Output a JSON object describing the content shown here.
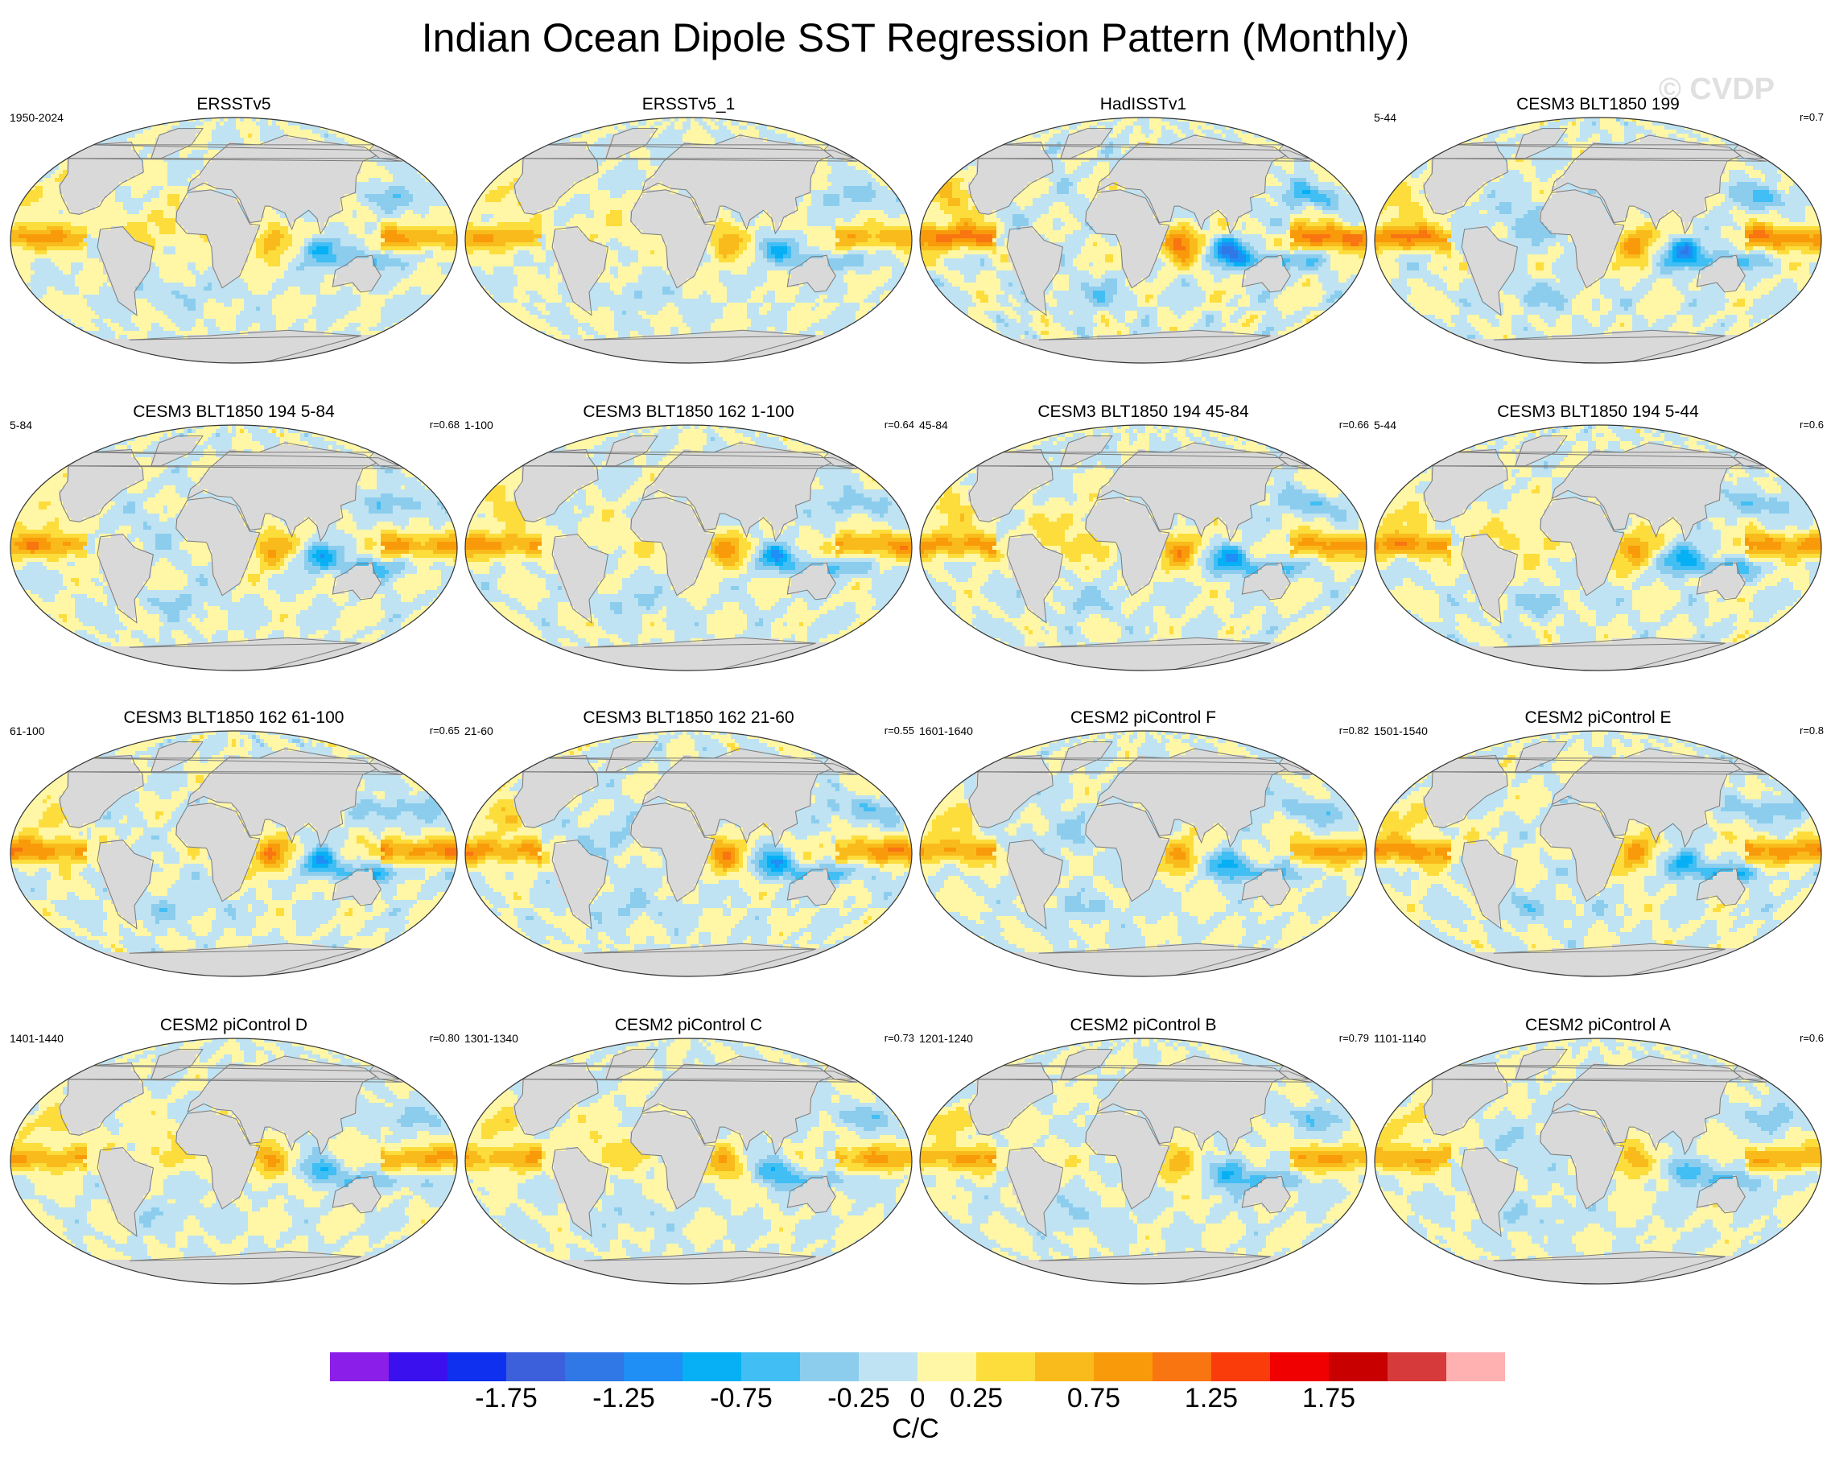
{
  "title": "Indian Ocean Dipole SST Regression Pattern (Monthly)",
  "watermark": "© CVDP",
  "colors": {
    "land": "#d9d9d9",
    "coast": "#7a7a7a",
    "scale": [
      "#8b1ee8",
      "#3a10ee",
      "#1030f0",
      "#3c5fdc",
      "#2f78e6",
      "#1f8ef5",
      "#07b0f5",
      "#41bef3",
      "#8ccdee",
      "#bfe3f2",
      "#fff7a6",
      "#fcdd3c",
      "#f9bb1b",
      "#f99a0a",
      "#f87511",
      "#f93c0a",
      "#f00000",
      "#c80000",
      "#d73a3a",
      "#ffb0b0"
    ]
  },
  "panels": [
    {
      "title": "ERSSTv5",
      "period": "1950-2024",
      "corr": "",
      "variant": 0,
      "amp": 0.9
    },
    {
      "title": "ERSSTv5_1",
      "period": "",
      "corr": "",
      "variant": 1,
      "amp": 0.85
    },
    {
      "title": "HadISSTv1",
      "period": "",
      "corr": "",
      "variant": 2,
      "amp": 1.3
    },
    {
      "title": "CESM3 BLT1850 199",
      "period": "5-44",
      "corr": "r=0.7",
      "variant": 3,
      "amp": 1.15
    },
    {
      "title": "CESM3 BLT1850 194 5-84",
      "period": "5-84",
      "corr": "r=0.68",
      "variant": 4,
      "amp": 1.0
    },
    {
      "title": "CESM3 BLT1850 162 1-100",
      "period": "1-100",
      "corr": "r=0.64",
      "variant": 5,
      "amp": 1.0
    },
    {
      "title": "CESM3 BLT1850 194 45-84",
      "period": "45-84",
      "corr": "r=0.66",
      "variant": 6,
      "amp": 1.0
    },
    {
      "title": "CESM3 BLT1850 194 5-44",
      "period": "5-44",
      "corr": "r=0.6",
      "variant": 7,
      "amp": 1.05
    },
    {
      "title": "CESM3 BLT1850 162 61-100",
      "period": "61-100",
      "corr": "r=0.65",
      "variant": 8,
      "amp": 1.1
    },
    {
      "title": "CESM3 BLT1850 162 21-60",
      "period": "21-60",
      "corr": "r=0.55",
      "variant": 9,
      "amp": 1.05
    },
    {
      "title": "CESM2 piControl F",
      "period": "1601-1640",
      "corr": "r=0.82",
      "variant": 10,
      "amp": 0.95
    },
    {
      "title": "CESM2 piControl E",
      "period": "1501-1540",
      "corr": "r=0.8",
      "variant": 11,
      "amp": 1.1
    },
    {
      "title": "CESM2 piControl D",
      "period": "1401-1440",
      "corr": "r=0.80",
      "variant": 12,
      "amp": 0.9
    },
    {
      "title": "CESM2 piControl C",
      "period": "1301-1340",
      "corr": "r=0.73",
      "variant": 13,
      "amp": 0.85
    },
    {
      "title": "CESM2 piControl B",
      "period": "1201-1240",
      "corr": "r=0.79",
      "variant": 14,
      "amp": 0.9
    },
    {
      "title": "CESM2 piControl A",
      "period": "1101-1140",
      "corr": "r=0.6",
      "variant": 15,
      "amp": 0.9
    }
  ],
  "colorbar": {
    "levels": [
      -2.25,
      -2,
      -1.75,
      -1.5,
      -1.25,
      -1,
      -0.75,
      -0.5,
      -0.25,
      0,
      0.25,
      0.5,
      0.75,
      1,
      1.25,
      1.5,
      1.75,
      2,
      2.25
    ],
    "tick_labels": [
      "-1.75",
      "-1.25",
      "-0.75",
      "-0.25",
      "0",
      "0.25",
      "0.75",
      "1.25",
      "1.75"
    ],
    "tick_values": [
      -1.75,
      -1.25,
      -0.75,
      -0.25,
      0,
      0.25,
      0.75,
      1.25,
      1.75
    ],
    "unit": "C/C"
  }
}
